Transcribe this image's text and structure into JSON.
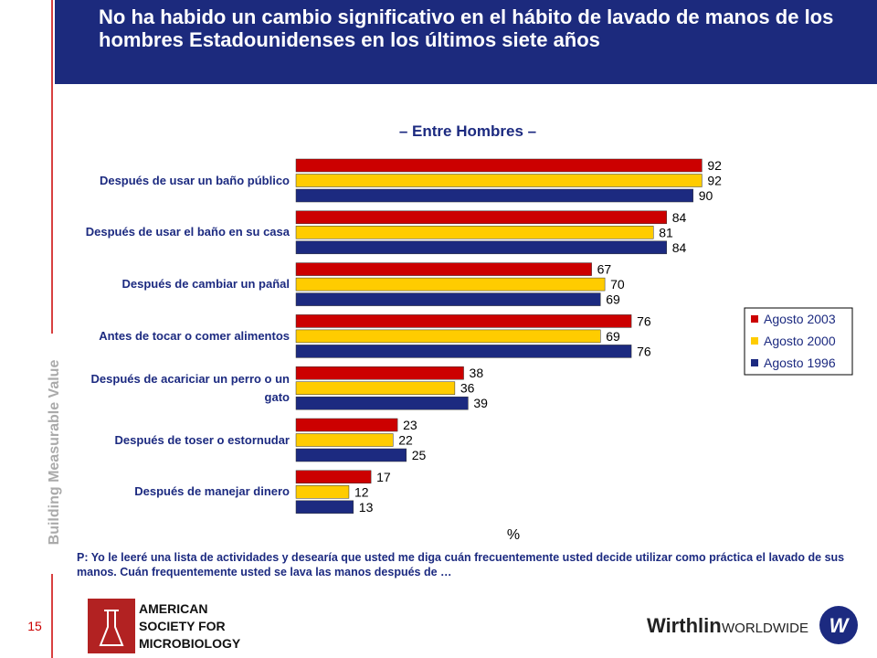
{
  "header": {
    "title": "No ha habido un cambio significativo en el hábito de lavado de manos de los hombres Estadounidenses en los últimos siete años"
  },
  "side_label": "Building Measurable Value",
  "page_number": "15",
  "chart_data": {
    "type": "bar",
    "orientation": "horizontal",
    "title": "– Entre Hombres –",
    "x_label": "%",
    "legend_position": "right",
    "categories": [
      "Después de usar un baño público",
      "Después de usar el baño en su casa",
      "Después de cambiar un pañal",
      "Antes de tocar o comer alimentos",
      "Después de acariciar un perro o un gato",
      "Después de toser o estornudar",
      "Después de manejar dinero"
    ],
    "series": [
      {
        "name": "Agosto 2003",
        "color": "#cc0000",
        "values": [
          92,
          84,
          67,
          76,
          38,
          23,
          17
        ]
      },
      {
        "name": "Agosto 2000",
        "color": "#ffcc00",
        "values": [
          92,
          81,
          70,
          69,
          36,
          22,
          12
        ]
      },
      {
        "name": "Agosto 1996",
        "color": "#1c2a80",
        "values": [
          90,
          84,
          69,
          76,
          39,
          25,
          13
        ]
      }
    ]
  },
  "footnote": "P: Yo le leeré una lista de actividades y desearía que usted me diga cuán frecuentemente usted decide utilizar como práctica el lavado de sus manos. Cuán frequentemente usted se lava las manos después de …",
  "logos": {
    "left": [
      "AMERICAN",
      "SOCIETY FOR",
      "MICROBIOLOGY"
    ],
    "right": {
      "name": "Wirthlin",
      "suffix": "WORLDWIDE",
      "mark": "W"
    }
  }
}
